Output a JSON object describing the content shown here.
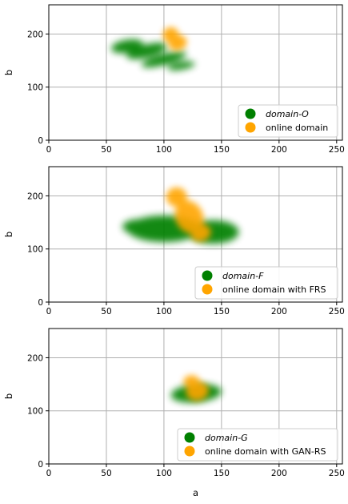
{
  "chart_data": [
    {
      "type": "scatter",
      "xlabel": "",
      "ylabel": "b",
      "xlim": [
        0,
        255
      ],
      "ylim": [
        0,
        255
      ],
      "xticks": [
        0,
        50,
        100,
        150,
        200,
        250
      ],
      "yticks": [
        0,
        100,
        200
      ],
      "grid": true,
      "legend_position": "bottom-right",
      "series": [
        {
          "name": "domain-O",
          "name_italic": true,
          "color": "#008000",
          "clusters": [
            {
              "cx": 68,
              "cy": 177,
              "rx": 14,
              "ry": 12,
              "angle": -10
            },
            {
              "cx": 85,
              "cy": 168,
              "rx": 18,
              "ry": 12,
              "angle": -15
            },
            {
              "cx": 100,
              "cy": 152,
              "rx": 20,
              "ry": 10,
              "angle": -15
            },
            {
              "cx": 115,
              "cy": 140,
              "rx": 12,
              "ry": 7,
              "angle": -10
            }
          ]
        },
        {
          "name": "online domain",
          "name_italic": false,
          "color": "#ffa500",
          "clusters": [
            {
              "cx": 106,
              "cy": 198,
              "rx": 7,
              "ry": 15,
              "angle": 0
            },
            {
              "cx": 112,
              "cy": 183,
              "rx": 8,
              "ry": 14,
              "angle": -20
            }
          ]
        }
      ]
    },
    {
      "type": "scatter",
      "xlabel": "",
      "ylabel": "b",
      "xlim": [
        0,
        255
      ],
      "ylim": [
        0,
        255
      ],
      "xticks": [
        0,
        50,
        100,
        150,
        200,
        250
      ],
      "yticks": [
        0,
        100,
        200
      ],
      "grid": true,
      "legend_position": "bottom-right",
      "series": [
        {
          "name": "domain-F",
          "name_italic": true,
          "color": "#008000",
          "clusters": [
            {
              "cx": 100,
              "cy": 138,
              "rx": 32,
              "ry": 25,
              "angle": 0
            },
            {
              "cx": 143,
              "cy": 132,
              "rx": 22,
              "ry": 22,
              "angle": 0
            },
            {
              "cx": 78,
              "cy": 142,
              "rx": 14,
              "ry": 14,
              "angle": 0
            }
          ]
        },
        {
          "name": "online domain with FRS",
          "name_italic": false,
          "color": "#ffa500",
          "clusters": [
            {
              "cx": 111,
              "cy": 198,
              "rx": 9,
              "ry": 18,
              "angle": 0
            },
            {
              "cx": 122,
              "cy": 160,
              "rx": 12,
              "ry": 32,
              "angle": -25
            },
            {
              "cx": 132,
              "cy": 130,
              "rx": 9,
              "ry": 16,
              "angle": -20
            }
          ]
        }
      ]
    },
    {
      "type": "scatter",
      "xlabel": "a",
      "ylabel": "b",
      "xlim": [
        0,
        255
      ],
      "ylim": [
        0,
        255
      ],
      "xticks": [
        0,
        50,
        100,
        150,
        200,
        250
      ],
      "yticks": [
        0,
        100,
        200
      ],
      "grid": true,
      "legend_position": "bottom-right",
      "series": [
        {
          "name": "domain-G",
          "name_italic": true,
          "color": "#008000",
          "clusters": [
            {
              "cx": 128,
              "cy": 133,
              "rx": 22,
              "ry": 17,
              "angle": -5
            }
          ]
        },
        {
          "name": "online domain with GAN-RS",
          "name_italic": false,
          "color": "#ffa500",
          "clusters": [
            {
              "cx": 124,
              "cy": 155,
              "rx": 7,
              "ry": 12,
              "angle": 0
            },
            {
              "cx": 129,
              "cy": 137,
              "rx": 10,
              "ry": 18,
              "angle": -10
            }
          ]
        }
      ]
    }
  ]
}
